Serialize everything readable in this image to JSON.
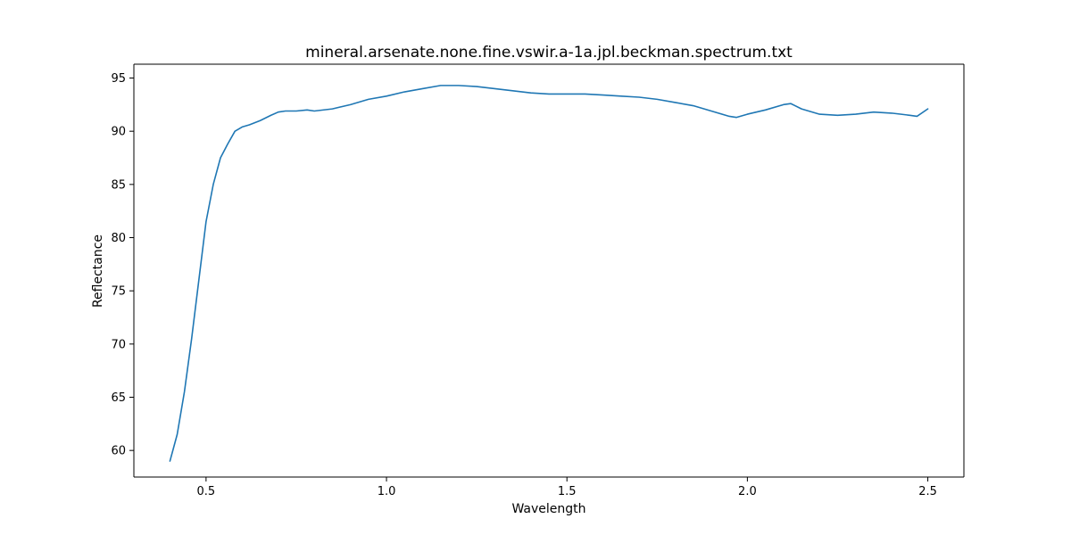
{
  "chart_data": {
    "type": "line",
    "title": "mineral.arsenate.none.fine.vswir.a-1a.jpl.beckman.spectrum.txt",
    "xlabel": "Wavelength",
    "ylabel": "Reflectance",
    "xlim": [
      0.3,
      2.6
    ],
    "ylim": [
      57.5,
      96.3
    ],
    "xticks": [
      0.5,
      1.0,
      1.5,
      2.0,
      2.5
    ],
    "xtick_labels": [
      "0.5",
      "1.0",
      "1.5",
      "2.0",
      "2.5"
    ],
    "yticks": [
      60,
      65,
      70,
      75,
      80,
      85,
      90,
      95
    ],
    "ytick_labels": [
      "60",
      "65",
      "70",
      "75",
      "80",
      "85",
      "90",
      "95"
    ],
    "grid": false,
    "legend": "none",
    "series": [
      {
        "color": "#1f77b4",
        "x": [
          0.4,
          0.42,
          0.44,
          0.46,
          0.48,
          0.5,
          0.52,
          0.54,
          0.56,
          0.58,
          0.6,
          0.62,
          0.65,
          0.68,
          0.7,
          0.72,
          0.75,
          0.78,
          0.8,
          0.85,
          0.9,
          0.95,
          1.0,
          1.05,
          1.1,
          1.15,
          1.2,
          1.25,
          1.3,
          1.35,
          1.4,
          1.45,
          1.5,
          1.55,
          1.6,
          1.65,
          1.7,
          1.75,
          1.8,
          1.85,
          1.9,
          1.95,
          1.97,
          2.0,
          2.05,
          2.1,
          2.12,
          2.15,
          2.2,
          2.25,
          2.3,
          2.35,
          2.4,
          2.45,
          2.47,
          2.5
        ],
        "y": [
          59.0,
          61.5,
          65.5,
          70.5,
          76.0,
          81.5,
          85.0,
          87.5,
          88.8,
          90.0,
          90.4,
          90.6,
          91.0,
          91.5,
          91.8,
          91.9,
          91.9,
          92.0,
          91.9,
          92.1,
          92.5,
          93.0,
          93.3,
          93.7,
          94.0,
          94.3,
          94.3,
          94.2,
          94.0,
          93.8,
          93.6,
          93.5,
          93.5,
          93.5,
          93.4,
          93.3,
          93.2,
          93.0,
          92.7,
          92.4,
          91.9,
          91.4,
          91.3,
          91.6,
          92.0,
          92.5,
          92.6,
          92.1,
          91.6,
          91.5,
          91.6,
          91.8,
          91.7,
          91.5,
          91.4,
          92.1
        ]
      }
    ]
  }
}
